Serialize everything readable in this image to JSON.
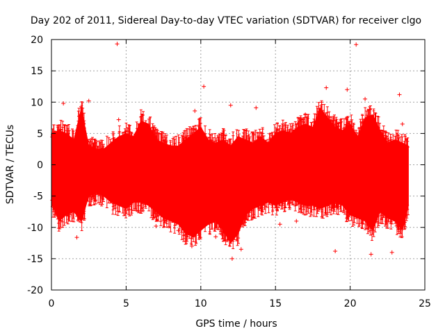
{
  "chart_data": {
    "type": "scatter",
    "title": "Day 202 of 2011, Sidereal Day-to-day VTEC variation (SDTVAR) for receiver clgo",
    "xlabel": "GPS time / hours",
    "ylabel": "SDTVAR / TECUs",
    "xlim": [
      0,
      25
    ],
    "ylim": [
      -20,
      20
    ],
    "xticks": [
      0,
      5,
      10,
      15,
      20,
      25
    ],
    "yticks": [
      -20,
      -15,
      -10,
      -5,
      0,
      5,
      10,
      15,
      20
    ],
    "grid": true,
    "color": "#ff0000",
    "series": [
      {
        "name": "SDTVAR",
        "x": [
          0.0,
          0.5,
          1.0,
          1.5,
          2.0,
          2.5,
          3.0,
          3.5,
          4.0,
          4.5,
          5.0,
          5.5,
          6.0,
          6.5,
          7.0,
          7.5,
          8.0,
          8.5,
          9.0,
          9.5,
          10.0,
          10.5,
          11.0,
          11.5,
          12.0,
          12.5,
          13.0,
          13.5,
          14.0,
          14.5,
          15.0,
          15.5,
          16.0,
          16.5,
          17.0,
          17.5,
          18.0,
          18.5,
          19.0,
          19.5,
          20.0,
          20.5,
          21.0,
          21.5,
          22.0,
          22.5,
          23.0,
          23.5,
          23.9
        ],
        "upper": [
          5.0,
          5.5,
          5.0,
          4.0,
          9.0,
          3.0,
          2.5,
          2.5,
          3.5,
          4.5,
          5.0,
          4.5,
          7.0,
          6.5,
          4.0,
          3.5,
          3.0,
          3.0,
          4.0,
          5.0,
          6.0,
          4.0,
          3.5,
          4.0,
          3.0,
          4.5,
          4.0,
          3.5,
          4.5,
          3.5,
          5.0,
          5.5,
          5.0,
          6.0,
          6.5,
          6.0,
          9.0,
          7.5,
          6.0,
          5.5,
          6.5,
          4.5,
          7.5,
          8.0,
          5.5,
          3.5,
          4.0,
          3.5,
          3.0
        ],
        "lower": [
          -6.0,
          -9.0,
          -8.0,
          -7.5,
          -9.0,
          -5.0,
          -4.5,
          -5.0,
          -6.0,
          -6.5,
          -7.0,
          -6.0,
          -6.0,
          -6.5,
          -7.5,
          -8.5,
          -9.0,
          -9.5,
          -11.0,
          -11.5,
          -10.5,
          -9.5,
          -9.0,
          -10.5,
          -12.5,
          -11.0,
          -8.0,
          -7.0,
          -6.5,
          -6.0,
          -6.5,
          -6.0,
          -5.5,
          -6.0,
          -6.5,
          -6.5,
          -7.0,
          -6.5,
          -6.0,
          -6.5,
          -8.0,
          -8.5,
          -9.0,
          -10.5,
          -7.5,
          -8.5,
          -9.0,
          -10.5,
          -6.5
        ]
      }
    ],
    "outliers": {
      "x": [
        4.4,
        4.5,
        9.6,
        10.2,
        12.0,
        12.1,
        13.7,
        17.0,
        19.8,
        20.4,
        21.4,
        23.3,
        23.5,
        0.8,
        1.7,
        2.5,
        7.0,
        9.4,
        15.3,
        16.4,
        18.4,
        19.0,
        12.7,
        21.0,
        22.8,
        8.5,
        11.0
      ],
      "y": [
        19.3,
        7.2,
        8.6,
        12.5,
        9.5,
        -15.0,
        9.1,
        8.0,
        12.0,
        19.2,
        -14.3,
        11.2,
        6.5,
        9.8,
        -11.6,
        10.2,
        -9.8,
        -13.0,
        -9.5,
        -9.0,
        12.3,
        -13.8,
        -13.5,
        10.5,
        -14.0,
        -10.5,
        -11.5
      ]
    }
  }
}
